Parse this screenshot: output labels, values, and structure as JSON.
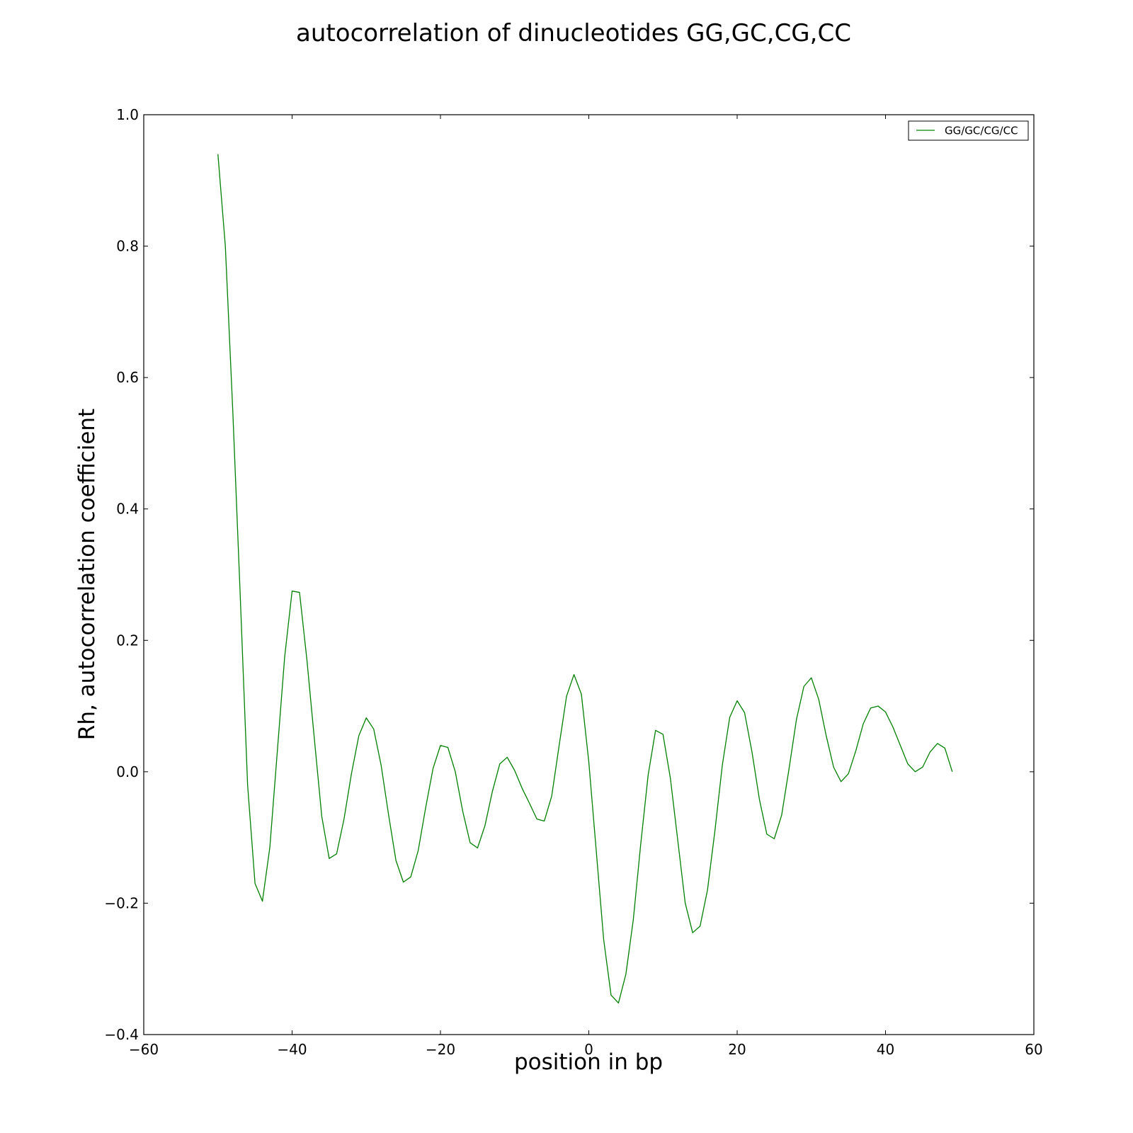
{
  "chart_data": {
    "type": "line",
    "title": "autocorrelation of dinucleotides GG,GC,CG,CC",
    "xlabel": "position in bp",
    "ylabel": "Rh, autocorrelation coefficient",
    "xlim": [
      -60,
      60
    ],
    "ylim": [
      -0.4,
      1.0
    ],
    "xticks": [
      -60,
      -40,
      -20,
      0,
      20,
      40,
      60
    ],
    "xtick_labels": [
      "−60",
      "−40",
      "−20",
      "0",
      "20",
      "40",
      "60"
    ],
    "yticks": [
      -0.4,
      -0.2,
      0.0,
      0.2,
      0.4,
      0.6,
      0.8,
      1.0
    ],
    "ytick_labels": [
      "−0.4",
      "−0.2",
      "0.0",
      "0.2",
      "0.4",
      "0.6",
      "0.8",
      "1.0"
    ],
    "grid": false,
    "legend_position": "top-right",
    "series": [
      {
        "name": "GG/GC/CG/CC",
        "color": "#008000",
        "x": [
          -50,
          -49,
          -48,
          -47,
          -46,
          -45,
          -44,
          -43,
          -42,
          -41,
          -40,
          -39,
          -38,
          -37,
          -36,
          -35,
          -34,
          -33,
          -32,
          -31,
          -30,
          -29,
          -28,
          -27,
          -26,
          -25,
          -24,
          -23,
          -22,
          -21,
          -20,
          -19,
          -18,
          -17,
          -16,
          -15,
          -14,
          -13,
          -12,
          -11,
          -10,
          -9,
          -8,
          -7,
          -6,
          -5,
          -4,
          -3,
          -2,
          -1,
          0,
          1,
          2,
          3,
          4,
          5,
          6,
          7,
          8,
          9,
          10,
          11,
          12,
          13,
          14,
          15,
          16,
          17,
          18,
          19,
          20,
          21,
          22,
          23,
          24,
          25,
          26,
          27,
          28,
          29,
          30,
          31,
          32,
          33,
          34,
          35,
          36,
          37,
          38,
          39,
          40,
          41,
          42,
          43,
          44,
          45,
          46,
          47,
          48,
          49
        ],
        "y": [
          0.94,
          0.8,
          0.55,
          0.27,
          -0.02,
          -0.17,
          -0.197,
          -0.115,
          0.03,
          0.175,
          0.275,
          0.273,
          0.17,
          0.05,
          -0.068,
          -0.132,
          -0.125,
          -0.072,
          -0.003,
          0.055,
          0.082,
          0.065,
          0.01,
          -0.065,
          -0.135,
          -0.168,
          -0.16,
          -0.12,
          -0.055,
          0.005,
          0.04,
          0.037,
          0.0,
          -0.06,
          -0.108,
          -0.116,
          -0.082,
          -0.03,
          0.012,
          0.022,
          0.002,
          -0.025,
          -0.048,
          -0.072,
          -0.075,
          -0.037,
          0.04,
          0.115,
          0.148,
          0.118,
          0.015,
          -0.12,
          -0.255,
          -0.34,
          -0.352,
          -0.308,
          -0.225,
          -0.11,
          -0.005,
          0.063,
          0.057,
          -0.01,
          -0.105,
          -0.2,
          -0.245,
          -0.235,
          -0.18,
          -0.09,
          0.01,
          0.083,
          0.108,
          0.09,
          0.03,
          -0.042,
          -0.095,
          -0.102,
          -0.066,
          0.005,
          0.08,
          0.13,
          0.143,
          0.11,
          0.055,
          0.007,
          -0.015,
          -0.003,
          0.032,
          0.073,
          0.097,
          0.1,
          0.091,
          0.068,
          0.04,
          0.012,
          0.0,
          0.007,
          0.03,
          0.043,
          0.036,
          0.0
        ]
      }
    ]
  }
}
